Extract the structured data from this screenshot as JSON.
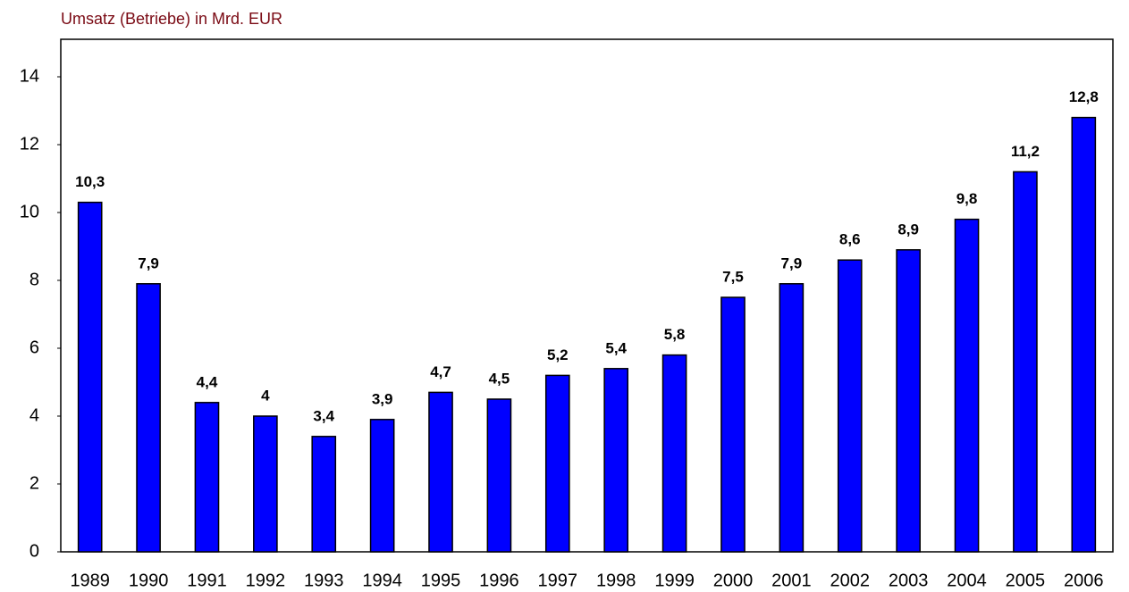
{
  "chart_data": {
    "type": "bar",
    "title": "Umsatz (Betriebe) in Mrd. EUR",
    "categories": [
      "1989",
      "1990",
      "1991",
      "1992",
      "1993",
      "1994",
      "1995",
      "1996",
      "1997",
      "1998",
      "1999",
      "2000",
      "2001",
      "2002",
      "2003",
      "2004",
      "2005",
      "2006"
    ],
    "values": [
      10.3,
      7.9,
      4.4,
      4,
      3.4,
      3.9,
      4.7,
      4.5,
      5.2,
      5.4,
      5.8,
      7.5,
      7.9,
      8.6,
      8.9,
      9.8,
      11.2,
      12.8
    ],
    "value_labels": [
      "10,3",
      "7,9",
      "4,4",
      "4",
      "3,4",
      "3,9",
      "4,7",
      "4,5",
      "5,2",
      "5,4",
      "5,8",
      "7,5",
      "7,9",
      "8,6",
      "8,9",
      "9,8",
      "11,2",
      "12,8"
    ],
    "color": "#0000ff",
    "ylim": [
      0,
      15
    ],
    "yticks": [
      0,
      2,
      4,
      6,
      8,
      10,
      12,
      14
    ],
    "grid": false
  }
}
